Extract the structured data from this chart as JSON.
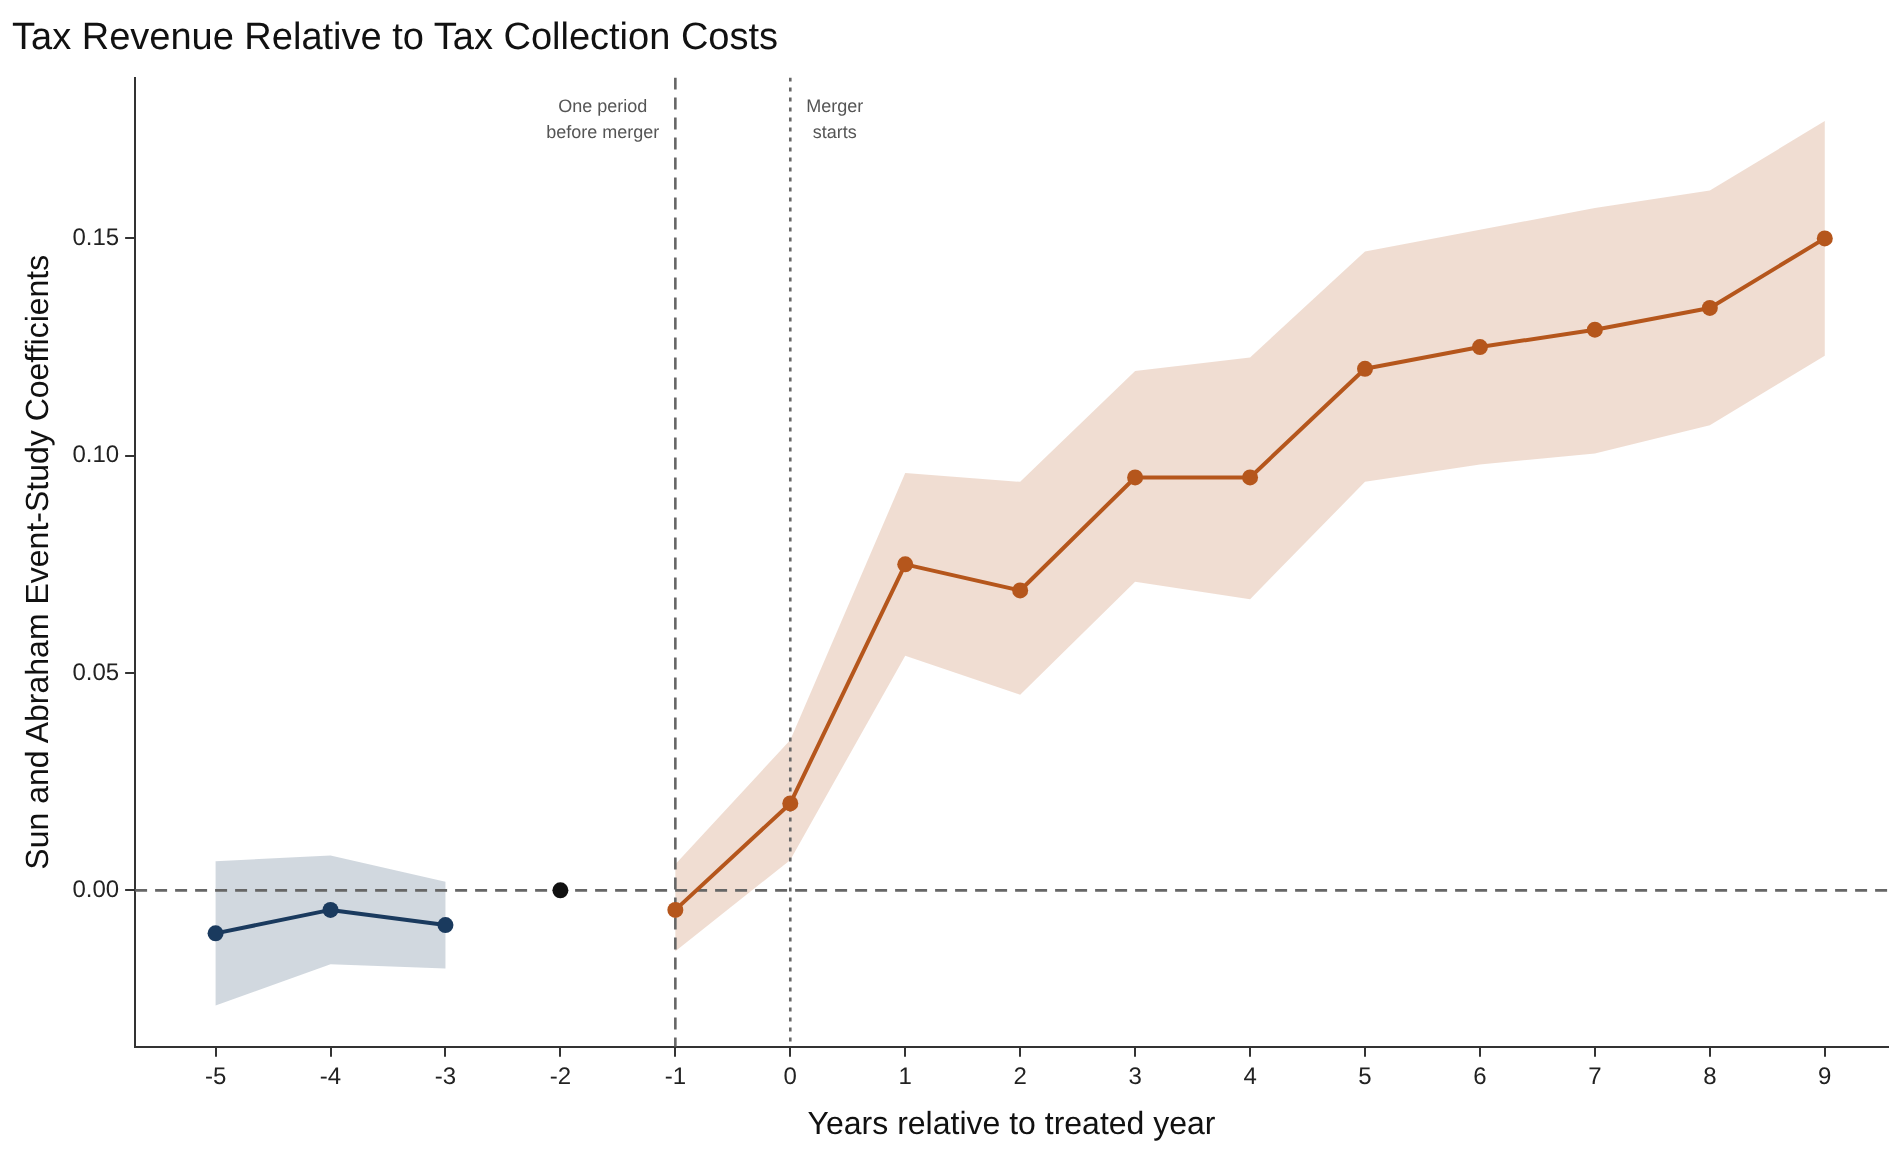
{
  "chart_data": {
    "type": "line",
    "title": "Tax Revenue Relative to Tax Collection Costs",
    "xlabel": "Years relative to treated year",
    "ylabel": "Sun and Abraham Event-Study Coefficients",
    "xlim": [
      -5.7,
      9.55
    ],
    "xticks": [
      -5,
      -4,
      -3,
      -2,
      -1,
      0,
      1,
      2,
      3,
      4,
      5,
      6,
      7,
      8,
      9
    ],
    "ylim": [
      -0.036,
      0.187
    ],
    "yticks": [
      {
        "value": 0,
        "label": "0.00"
      },
      {
        "value": 0.05,
        "label": "0.05"
      },
      {
        "value": 0.1,
        "label": "0.10"
      },
      {
        "value": 0.15,
        "label": "0.15"
      }
    ],
    "grid": false,
    "legend": false,
    "marker": "circle",
    "line_style": "solid",
    "series": [
      {
        "type": "line",
        "color": "#1a3a5e",
        "x": [
          -5,
          -4,
          -3
        ],
        "values": [
          -0.0099,
          -0.0045,
          -0.008
        ],
        "lower": [
          -0.0265,
          -0.017,
          -0.018
        ],
        "upper": [
          0.0067,
          0.008,
          0.002
        ]
      },
      {
        "type": "scatter",
        "color": "#111111",
        "x": [
          -2
        ],
        "values": [
          0
        ]
      },
      {
        "type": "line",
        "color": "#b5561c",
        "x": [
          -1,
          0,
          1,
          2,
          3,
          4,
          5,
          6,
          7,
          8,
          9
        ],
        "values": [
          -0.0045,
          0.02,
          0.075,
          0.069,
          0.095,
          0.095,
          0.12,
          0.125,
          0.129,
          0.134,
          0.15
        ],
        "lower": [
          -0.014,
          0.007,
          0.054,
          0.045,
          0.071,
          0.067,
          0.094,
          0.098,
          0.1005,
          0.107,
          0.123
        ],
        "upper": [
          0.006,
          0.0346,
          0.096,
          0.094,
          0.1195,
          0.1226,
          0.147,
          0.152,
          0.157,
          0.161,
          0.177
        ]
      }
    ],
    "ref_lines": [
      {
        "axis": "y",
        "value": 0,
        "line_style": "dashed",
        "color": "#666666"
      },
      {
        "axis": "x",
        "value": -1,
        "label": "One period\nbefore merger",
        "line_style": "dashed",
        "color": "#666666"
      },
      {
        "axis": "x",
        "value": 0,
        "label": "Merger\nstarts",
        "line_style": "dotted",
        "color": "#666666"
      }
    ]
  }
}
